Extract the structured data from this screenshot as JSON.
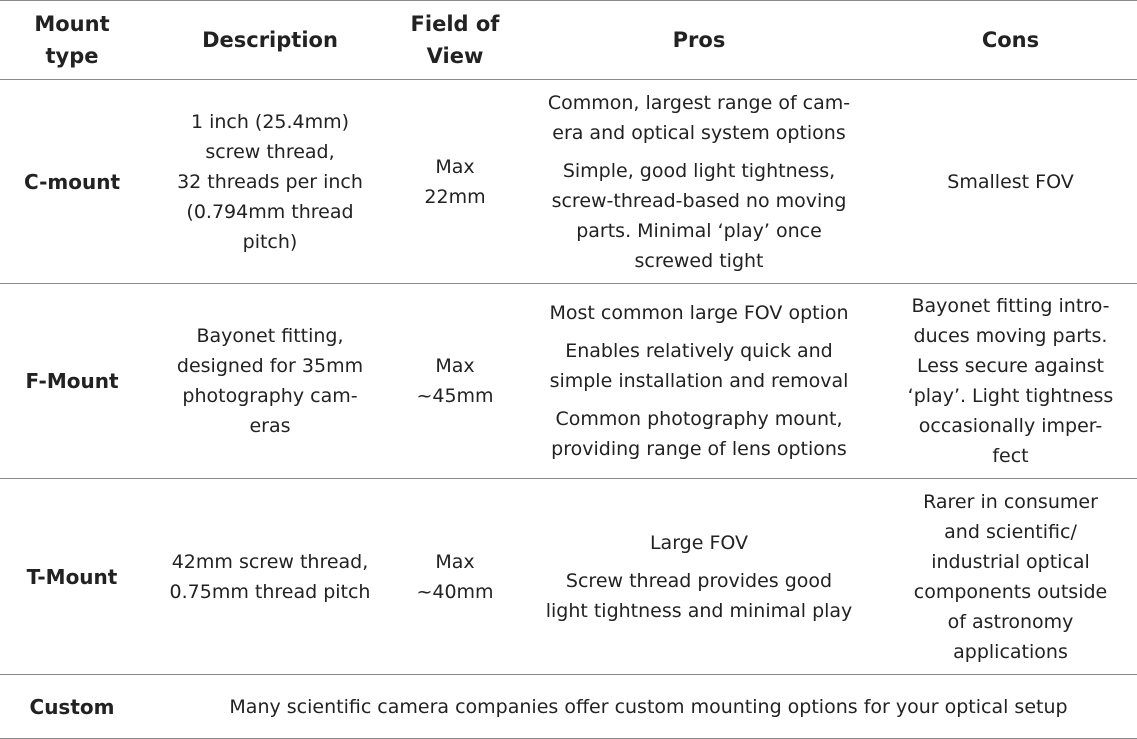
{
  "headers": [
    "Mount type",
    "Description",
    "Field of View",
    "Pros",
    "Cons"
  ],
  "rows": [
    {
      "type": "C-mount",
      "description": [
        "1 inch (25.4mm)",
        "screw thread,",
        "32 threads per inch",
        "(0.794mm thread",
        "pitch)"
      ],
      "fov": [
        "Max",
        "22mm"
      ],
      "pros": [
        [
          "Common, largest range of cam-",
          "era and optical system options"
        ],
        [
          "Simple, good light tightness,",
          "screw-thread-based no moving",
          "parts. Minimal ‘play’ once",
          "screwed tight"
        ]
      ],
      "cons": [
        "Smallest FOV"
      ]
    },
    {
      "type": "F-Mount",
      "description": [
        "Bayonet fitting,",
        "designed for 35mm",
        "photography cam-",
        "eras"
      ],
      "fov": [
        "Max",
        "~45mm"
      ],
      "pros": [
        [
          "Most common large FOV option"
        ],
        [
          "Enables relatively quick and",
          "simple installation and removal"
        ],
        [
          "Common photography mount,",
          "providing range of lens options"
        ]
      ],
      "cons": [
        "Bayonet fitting intro-",
        "duces moving parts.",
        "Less secure against",
        "‘play’. Light tightness",
        "occasionally imper-",
        "fect"
      ]
    },
    {
      "type": "T-Mount",
      "description": [
        "42mm screw thread,",
        "0.75mm thread pitch"
      ],
      "fov": [
        "Max",
        "~40mm"
      ],
      "pros": [
        [
          "Large FOV"
        ],
        [
          "Screw thread provides good",
          "light tightness and minimal play"
        ]
      ],
      "cons": [
        "Rarer in consumer",
        "and scientific/",
        "industrial optical",
        "components outside",
        "of astronomy",
        "applications"
      ]
    }
  ],
  "custom": {
    "type": "Custom",
    "note": "Many scientific camera companies offer custom mounting options for your optical setup"
  }
}
